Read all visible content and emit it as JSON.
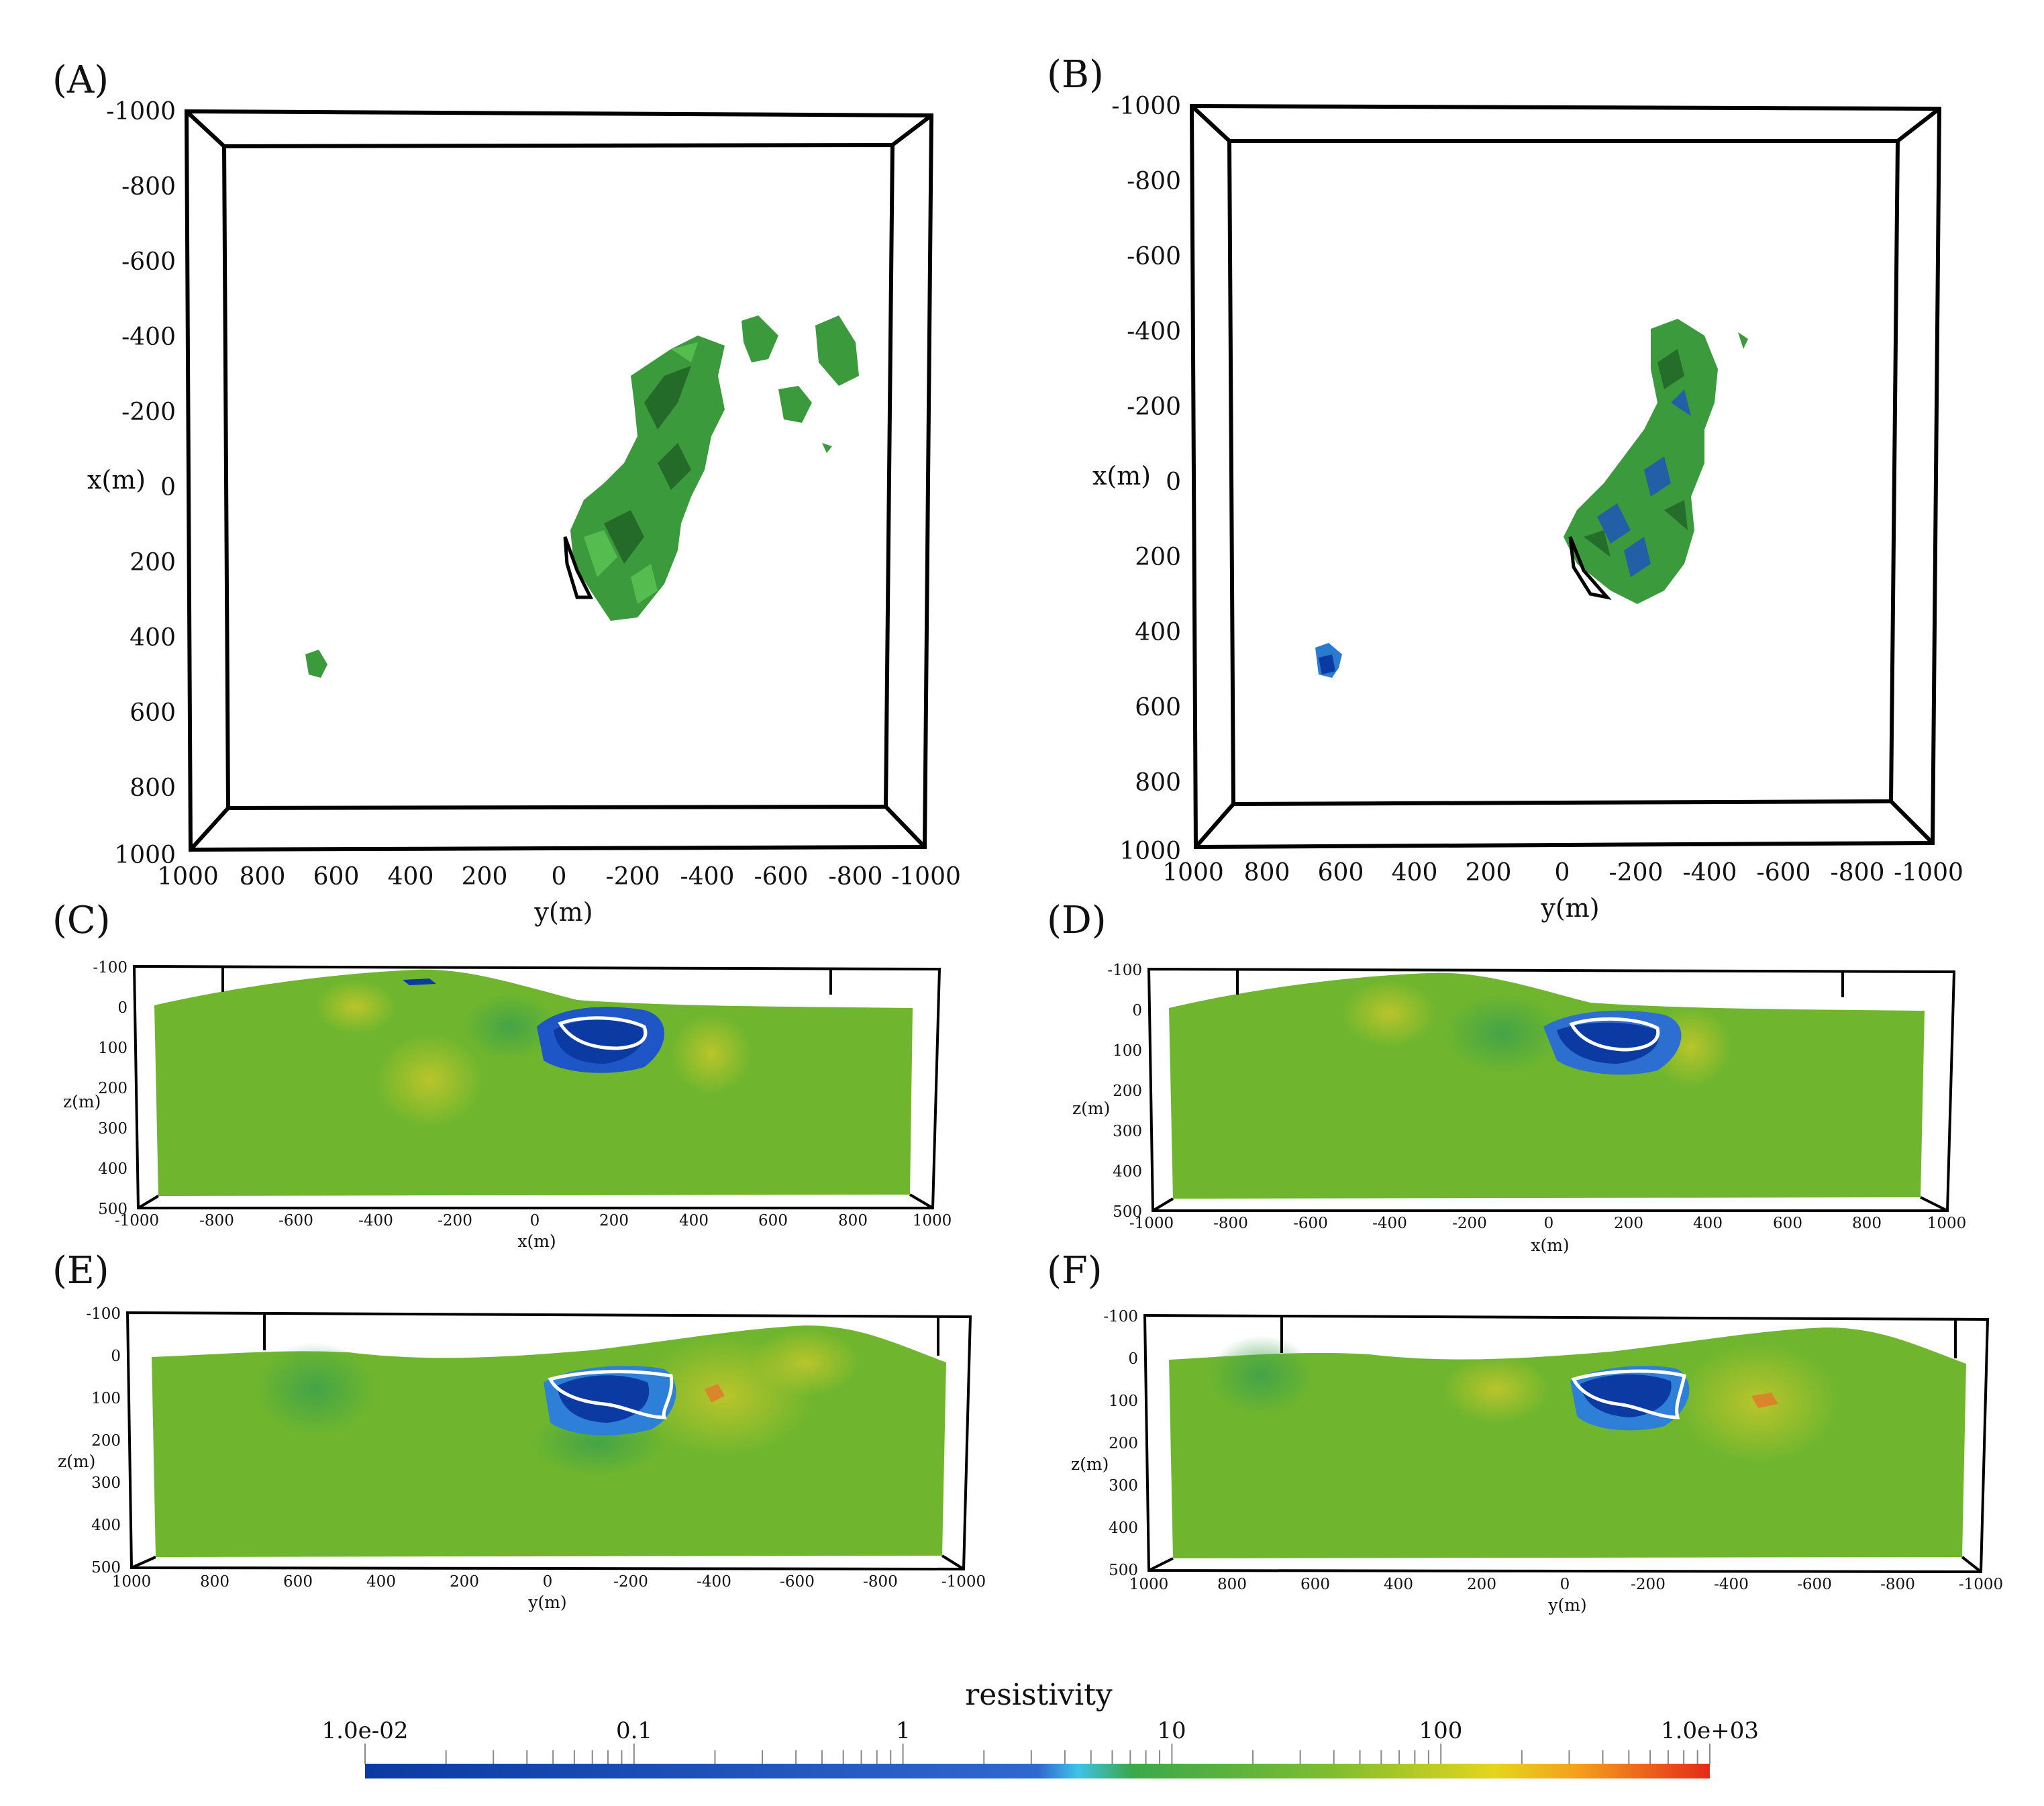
{
  "figure": {
    "panels": [
      {
        "id": "A",
        "label": "(A)",
        "xlabel": "x(m)",
        "ylabel": "y(m)",
        "x_ticks": [
          "-1000",
          "-800",
          "-600",
          "-400",
          "-200",
          "0",
          "200",
          "400",
          "600",
          "800",
          "1000"
        ],
        "y_ticks": [
          "1000",
          "800",
          "600",
          "400",
          "200",
          "0",
          "-200",
          "-400",
          "-600",
          "-800",
          "-1000"
        ]
      },
      {
        "id": "B",
        "label": "(B)",
        "xlabel": "x(m)",
        "ylabel": "y(m)",
        "x_ticks": [
          "-1000",
          "-800",
          "-600",
          "-400",
          "-200",
          "0",
          "200",
          "400",
          "600",
          "800",
          "1000"
        ],
        "y_ticks": [
          "1000",
          "800",
          "600",
          "400",
          "200",
          "0",
          "-200",
          "-400",
          "-600",
          "-800",
          "-1000"
        ]
      },
      {
        "id": "C",
        "label": "(C)",
        "zlabel": "z(m)",
        "hlabel": "x(m)",
        "z_ticks": [
          "-100",
          "0",
          "100",
          "200",
          "300",
          "400",
          "500"
        ],
        "h_ticks": [
          "-1000",
          "-800",
          "-600",
          "-400",
          "-200",
          "0",
          "200",
          "400",
          "600",
          "800",
          "1000"
        ]
      },
      {
        "id": "D",
        "label": "(D)",
        "zlabel": "z(m)",
        "hlabel": "x(m)",
        "z_ticks": [
          "-100",
          "0",
          "100",
          "200",
          "300",
          "400",
          "500"
        ],
        "h_ticks": [
          "-1000",
          "-800",
          "-600",
          "-400",
          "-200",
          "0",
          "200",
          "400",
          "600",
          "800",
          "1000"
        ]
      },
      {
        "id": "E",
        "label": "(E)",
        "zlabel": "z(m)",
        "hlabel": "y(m)",
        "z_ticks": [
          "-100",
          "0",
          "100",
          "200",
          "300",
          "400",
          "500"
        ],
        "h_ticks": [
          "1000",
          "800",
          "600",
          "400",
          "200",
          "0",
          "-200",
          "-400",
          "-600",
          "-800",
          "-1000"
        ]
      },
      {
        "id": "F",
        "label": "(F)",
        "zlabel": "z(m)",
        "hlabel": "y(m)",
        "z_ticks": [
          "-100",
          "0",
          "100",
          "200",
          "300",
          "400",
          "500"
        ],
        "h_ticks": [
          "1000",
          "800",
          "600",
          "400",
          "200",
          "0",
          "-200",
          "-400",
          "-600",
          "-800",
          "-1000"
        ]
      }
    ],
    "colorbar": {
      "title": "resistivity",
      "labels": [
        "1.0e-02",
        "0.1",
        "1",
        "10",
        "100",
        "1.0e+03"
      ],
      "colors": [
        "#0b3aa3",
        "#1f4fc0",
        "#3d6ad8",
        "#3fb3e3",
        "#3aa84a",
        "#62b637",
        "#9cc628",
        "#e5d51c",
        "#f4a21c",
        "#e52a1a"
      ]
    }
  }
}
